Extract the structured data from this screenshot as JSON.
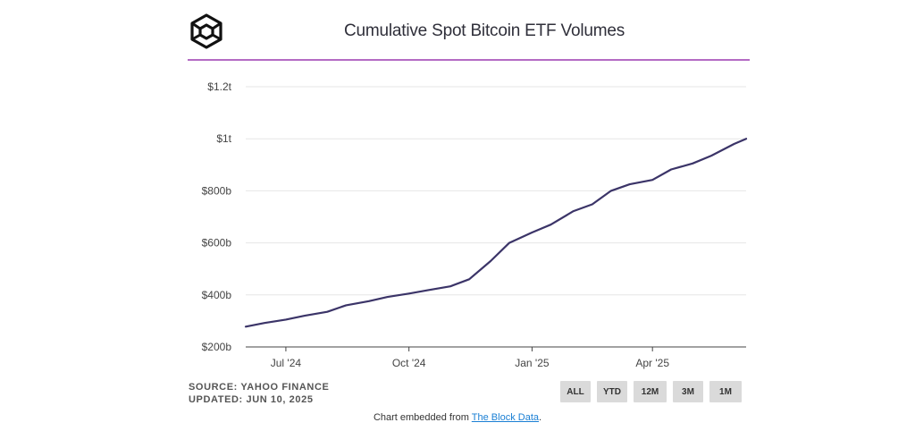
{
  "header": {
    "logo_icon": "cube-logo-icon",
    "title": "Cumulative Spot Bitcoin ETF Volumes",
    "accent_color": "#b46bc4"
  },
  "chart_data": {
    "type": "line",
    "title": "Cumulative Spot Bitcoin ETF Volumes",
    "xlabel": "",
    "ylabel": "",
    "grid": true,
    "y_ticks": [
      "$200b",
      "$400b",
      "$600b",
      "$800b",
      "$1t",
      "$1.2t"
    ],
    "y_tick_values": [
      200,
      400,
      600,
      800,
      1000,
      1200
    ],
    "ylim": [
      200,
      1200
    ],
    "y_unit": "billions USD",
    "x_ticks": [
      "Jul '24",
      "Oct '24",
      "Jan '25",
      "Apr '25"
    ],
    "x_tick_dates": [
      "2024-07-01",
      "2024-10-01",
      "2025-01-01",
      "2025-04-01"
    ],
    "xlim": [
      "2024-06-01",
      "2025-06-10"
    ],
    "series": [
      {
        "color": "#3b3468",
        "points": [
          [
            "2024-06-01",
            278
          ],
          [
            "2024-06-15",
            292
          ],
          [
            "2024-07-01",
            305
          ],
          [
            "2024-07-15",
            320
          ],
          [
            "2024-08-01",
            335
          ],
          [
            "2024-08-15",
            360
          ],
          [
            "2024-09-01",
            376
          ],
          [
            "2024-09-15",
            392
          ],
          [
            "2024-10-01",
            405
          ],
          [
            "2024-10-15",
            418
          ],
          [
            "2024-11-01",
            433
          ],
          [
            "2024-11-15",
            460
          ],
          [
            "2024-12-01",
            530
          ],
          [
            "2024-12-15",
            600
          ],
          [
            "2025-01-01",
            640
          ],
          [
            "2025-01-15",
            670
          ],
          [
            "2025-02-01",
            722
          ],
          [
            "2025-02-15",
            748
          ],
          [
            "2025-03-01",
            800
          ],
          [
            "2025-03-15",
            825
          ],
          [
            "2025-04-01",
            842
          ],
          [
            "2025-04-15",
            882
          ],
          [
            "2025-05-01",
            905
          ],
          [
            "2025-05-15",
            935
          ],
          [
            "2025-06-01",
            980
          ],
          [
            "2025-06-10",
            1000
          ]
        ]
      }
    ]
  },
  "footer": {
    "source": "SOURCE: YAHOO FINANCE",
    "updated": "UPDATED: JUN 10, 2025",
    "range_buttons": [
      "ALL",
      "YTD",
      "12M",
      "3M",
      "1M"
    ],
    "embed_prefix": "Chart embedded from ",
    "embed_link": "The Block Data",
    "embed_suffix": ".",
    "link_color": "#1a7fd4"
  }
}
